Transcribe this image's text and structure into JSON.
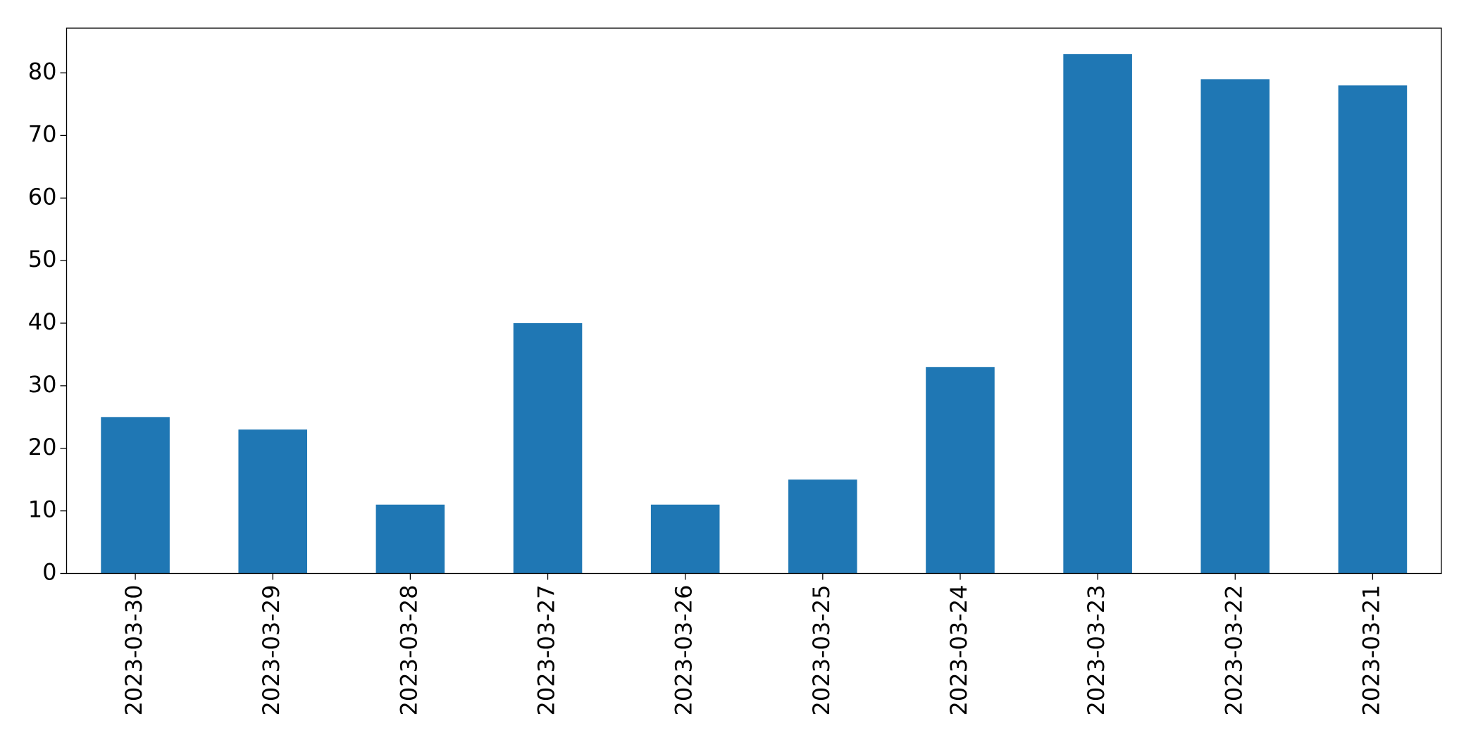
{
  "chart_data": {
    "type": "bar",
    "categories": [
      "2023-03-30",
      "2023-03-29",
      "2023-03-28",
      "2023-03-27",
      "2023-03-26",
      "2023-03-25",
      "2023-03-24",
      "2023-03-23",
      "2023-03-22",
      "2023-03-21"
    ],
    "values": [
      25,
      23,
      11,
      40,
      11,
      15,
      33,
      83,
      79,
      78
    ],
    "color": "#1f77b4",
    "ylim": [
      0,
      87.15
    ],
    "yticks": [
      0,
      10,
      20,
      30,
      40,
      50,
      60,
      70,
      80
    ],
    "grid": false
  }
}
